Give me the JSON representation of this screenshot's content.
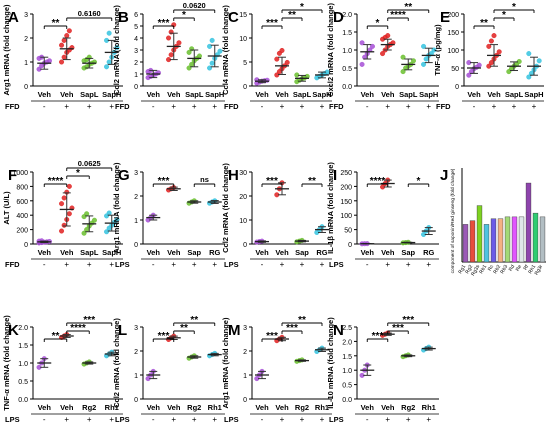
{
  "chart_data": [
    {
      "letter": "A",
      "type": "scatter",
      "ylabel": "Arg1 mRNA (fold change)",
      "yticks": [
        "0",
        "1",
        "2",
        "3"
      ],
      "ylim": [
        0,
        3
      ],
      "groups": [
        "Veh",
        "Veh",
        "SapL",
        "SapH"
      ],
      "treat_label": "FFD",
      "treat": [
        "-",
        "+",
        "+",
        "+"
      ],
      "colors": [
        "#a64fd6",
        "#e02020",
        "#6abf2e",
        "#35c3df"
      ],
      "means": [
        0.95,
        1.55,
        0.95,
        1.4
      ],
      "sds": [
        0.25,
        0.45,
        0.2,
        0.5
      ],
      "points": [
        [
          0.7,
          0.85,
          0.95,
          1.0,
          1.05,
          1.15,
          1.2
        ],
        [
          1.0,
          1.2,
          1.4,
          1.5,
          1.6,
          1.7,
          1.9,
          2.1,
          2.3
        ],
        [
          0.75,
          0.8,
          0.9,
          0.95,
          1.0,
          1.05,
          1.1,
          1.2
        ],
        [
          0.8,
          1.0,
          1.2,
          1.4,
          1.6,
          1.9,
          2.2
        ]
      ],
      "annotations": [
        {
          "from": 0,
          "to": 1,
          "label": "**",
          "level": 0
        },
        {
          "from": 1,
          "to": 3,
          "label": "0.6160",
          "level": 1
        }
      ]
    },
    {
      "letter": "B",
      "type": "scatter",
      "ylabel": "Ccl2 mRNA (fold change)",
      "yticks": [
        "0",
        "1",
        "2",
        "3",
        "4",
        "5",
        "6"
      ],
      "ylim": [
        0,
        6
      ],
      "groups": [
        "Veh",
        "Veh",
        "SapL",
        "SapH"
      ],
      "treat_label": "FFD",
      "treat": [
        "-",
        "+",
        "+",
        "+"
      ],
      "colors": [
        "#a64fd6",
        "#e02020",
        "#6abf2e",
        "#35c3df"
      ],
      "means": [
        1.0,
        3.3,
        2.3,
        2.5
      ],
      "sds": [
        0.3,
        1.1,
        0.7,
        0.9
      ],
      "points": [
        [
          0.7,
          0.8,
          0.9,
          1.0,
          1.1,
          1.2,
          1.3
        ],
        [
          2.2,
          2.6,
          3.0,
          3.3,
          3.6,
          4.0,
          4.5,
          5.1
        ],
        [
          1.5,
          1.8,
          2.1,
          2.3,
          2.5,
          2.8,
          3.1
        ],
        [
          1.5,
          1.9,
          2.3,
          2.6,
          2.9,
          3.3,
          3.8
        ]
      ],
      "annotations": [
        {
          "from": 0,
          "to": 1,
          "label": "***",
          "level": 0
        },
        {
          "from": 1,
          "to": 2,
          "label": "*",
          "level": 1
        },
        {
          "from": 1,
          "to": 3,
          "label": "0.0620",
          "level": 2
        }
      ]
    },
    {
      "letter": "C",
      "type": "scatter",
      "ylabel": "Ccl4 mRNA (fold change)",
      "yticks": [
        "0",
        "5",
        "10",
        "15"
      ],
      "ylim": [
        0,
        15
      ],
      "groups": [
        "Veh",
        "Veh",
        "SapL",
        "SapH"
      ],
      "treat_label": "FFD",
      "treat": [
        "-",
        "+",
        "+",
        "+"
      ],
      "colors": [
        "#a64fd6",
        "#e02020",
        "#6abf2e",
        "#35c3df"
      ],
      "means": [
        1.0,
        4.2,
        1.6,
        2.3
      ],
      "sds": [
        0.3,
        1.8,
        0.6,
        0.6
      ],
      "points": [
        [
          0.6,
          0.8,
          1.0,
          1.1,
          1.2,
          1.3
        ],
        [
          2.3,
          3.0,
          3.6,
          4.2,
          4.9,
          5.6,
          6.8,
          7.4
        ],
        [
          0.9,
          1.2,
          1.5,
          1.7,
          2.0,
          2.3
        ],
        [
          1.7,
          2.0,
          2.3,
          2.6,
          2.9
        ]
      ],
      "annotations": [
        {
          "from": 0,
          "to": 1,
          "label": "***",
          "level": 0
        },
        {
          "from": 1,
          "to": 2,
          "label": "**",
          "level": 1
        },
        {
          "from": 1,
          "to": 3,
          "label": "*",
          "level": 2
        }
      ]
    },
    {
      "letter": "D",
      "type": "scatter",
      "ylabel": "Cxcl2 mRNA (fold change)",
      "yticks": [
        "0.0",
        "0.5",
        "1.0",
        "1.5",
        "2.0"
      ],
      "ylim": [
        0,
        2
      ],
      "groups": [
        "Veh",
        "Veh",
        "SapL",
        "SapH"
      ],
      "treat_label": "FFD",
      "treat": [
        "-",
        "+",
        "+",
        "+"
      ],
      "colors": [
        "#a64fd6",
        "#e02020",
        "#6abf2e",
        "#35c3df"
      ],
      "means": [
        0.95,
        1.15,
        0.6,
        0.85
      ],
      "sds": [
        0.2,
        0.15,
        0.15,
        0.2
      ],
      "points": [
        [
          0.6,
          0.8,
          0.9,
          1.0,
          1.1,
          1.2
        ],
        [
          0.9,
          1.0,
          1.1,
          1.15,
          1.2,
          1.3,
          1.35,
          1.4
        ],
        [
          0.4,
          0.5,
          0.55,
          0.6,
          0.7,
          0.8
        ],
        [
          0.6,
          0.75,
          0.85,
          0.9,
          1.0,
          1.1
        ]
      ],
      "annotations": [
        {
          "from": 0,
          "to": 1,
          "label": "*",
          "level": 0
        },
        {
          "from": 1,
          "to": 2,
          "label": "****",
          "level": 1
        },
        {
          "from": 1,
          "to": 3,
          "label": "**",
          "level": 2
        }
      ]
    },
    {
      "letter": "E",
      "type": "scatter",
      "ylabel": "TNF-α (pg/mg)",
      "yticks": [
        "0",
        "50",
        "100",
        "150",
        "200"
      ],
      "ylim": [
        0,
        200
      ],
      "groups": [
        "Veh",
        "Veh",
        "SapL",
        "SapH"
      ],
      "treat_label": "FFD",
      "treat": [
        "-",
        "+",
        "+",
        "+"
      ],
      "colors": [
        "#a64fd6",
        "#e02020",
        "#6abf2e",
        "#35c3df"
      ],
      "means": [
        50,
        85,
        55,
        55
      ],
      "sds": [
        15,
        30,
        12,
        25
      ],
      "points": [
        [
          30,
          40,
          48,
          52,
          58,
          65
        ],
        [
          55,
          65,
          75,
          85,
          95,
          110,
          125,
          140
        ],
        [
          40,
          48,
          55,
          60,
          68
        ],
        [
          25,
          35,
          45,
          55,
          70,
          90
        ]
      ],
      "annotations": [
        {
          "from": 0,
          "to": 1,
          "label": "**",
          "level": 0
        },
        {
          "from": 1,
          "to": 2,
          "label": "*",
          "level": 1
        },
        {
          "from": 1,
          "to": 3,
          "label": "*",
          "level": 2
        }
      ]
    },
    {
      "letter": "F",
      "type": "scatter",
      "ylabel": "ALT (U/L)",
      "yticks": [
        "0",
        "200",
        "400",
        "600",
        "800",
        "1000"
      ],
      "ylim": [
        0,
        1000
      ],
      "groups": [
        "Veh",
        "Veh",
        "SapL",
        "SapH"
      ],
      "treat_label": "FFD",
      "treat": [
        "-",
        "+",
        "+",
        "+"
      ],
      "colors": [
        "#a64fd6",
        "#e02020",
        "#6abf2e",
        "#35c3df"
      ],
      "means": [
        30,
        480,
        280,
        290
      ],
      "sds": [
        10,
        230,
        110,
        110
      ],
      "points": [
        [
          15,
          20,
          25,
          30,
          35,
          40,
          45
        ],
        [
          180,
          260,
          340,
          420,
          500,
          560,
          640,
          720,
          800
        ],
        [
          150,
          200,
          250,
          290,
          330,
          380,
          420
        ],
        [
          170,
          220,
          260,
          300,
          340,
          390,
          430
        ]
      ],
      "annotations": [
        {
          "from": 0,
          "to": 1,
          "label": "****",
          "level": 0
        },
        {
          "from": 1,
          "to": 2,
          "label": "*",
          "level": 1
        },
        {
          "from": 1,
          "to": 3,
          "label": "0.0625",
          "level": 2
        }
      ]
    },
    {
      "letter": "G",
      "type": "scatter",
      "ylabel": "Arg1 mRNA (fold change)",
      "yticks": [
        "0",
        "1",
        "2",
        "3"
      ],
      "ylim": [
        0,
        3
      ],
      "groups": [
        "Veh",
        "Veh",
        "Sap",
        "RG"
      ],
      "treat_label": "LPS",
      "treat": [
        "-",
        "+",
        "+",
        "+"
      ],
      "colors": [
        "#a64fd6",
        "#e02020",
        "#6abf2e",
        "#35c3df"
      ],
      "means": [
        1.1,
        2.3,
        1.75,
        1.75
      ],
      "sds": [
        0.1,
        0.07,
        0.05,
        0.06
      ],
      "points": [
        [
          1.0,
          1.1,
          1.2
        ],
        [
          2.25,
          2.3,
          2.35
        ],
        [
          1.7,
          1.75,
          1.8
        ],
        [
          1.7,
          1.75,
          1.8
        ]
      ],
      "annotations": [
        {
          "from": 0,
          "to": 1,
          "label": "***",
          "level": 0
        },
        {
          "from": 2,
          "to": 3,
          "label": "ns",
          "level": 0
        }
      ]
    },
    {
      "letter": "H",
      "type": "scatter",
      "ylabel": "Ccl2 mRNA (fold change)",
      "yticks": [
        "0",
        "10",
        "20",
        "30"
      ],
      "ylim": [
        0,
        30
      ],
      "groups": [
        "Veh",
        "Veh",
        "Sap",
        "RG"
      ],
      "treat_label": "LPS",
      "treat": [
        "-",
        "+",
        "+",
        "+"
      ],
      "colors": [
        "#a64fd6",
        "#e02020",
        "#6abf2e",
        "#35c3df"
      ],
      "means": [
        1.0,
        23,
        1.2,
        6.0
      ],
      "sds": [
        0.3,
        2.5,
        0.3,
        1.2
      ],
      "points": [
        [
          0.8,
          1.0,
          1.2
        ],
        [
          20.5,
          23,
          25.5
        ],
        [
          0.9,
          1.2,
          1.5
        ],
        [
          4.8,
          6.0,
          7.2
        ]
      ],
      "annotations": [
        {
          "from": 0,
          "to": 1,
          "label": "***",
          "level": 0
        },
        {
          "from": 2,
          "to": 3,
          "label": "**",
          "level": 0
        }
      ]
    },
    {
      "letter": "I",
      "type": "scatter",
      "ylabel": "IL-1β mRNA (fold change)",
      "yticks": [
        "0",
        "50",
        "100",
        "150",
        "200",
        "250"
      ],
      "ylim": [
        0,
        250
      ],
      "groups": [
        "Veh",
        "Veh",
        "Sap",
        "RG"
      ],
      "treat_label": "LPS",
      "treat": [
        "-",
        "+",
        "+",
        "+"
      ],
      "colors": [
        "#a64fd6",
        "#e02020",
        "#6abf2e",
        "#35c3df"
      ],
      "means": [
        1.0,
        210,
        5,
        45
      ],
      "sds": [
        0.5,
        12,
        1,
        12
      ],
      "points": [
        [
          0.7,
          1.0,
          1.3
        ],
        [
          198,
          210,
          222
        ],
        [
          4,
          5,
          6
        ],
        [
          33,
          45,
          57
        ]
      ],
      "annotations": [
        {
          "from": 0,
          "to": 1,
          "label": "****",
          "level": 0
        },
        {
          "from": 2,
          "to": 3,
          "label": "*",
          "level": 0
        }
      ]
    },
    {
      "letter": "J",
      "type": "bar",
      "ylabel": "component of saponin/Red ginseng (fold change)",
      "categories": [
        "Rg1",
        "Rg2",
        "Rg3s",
        "Rb1",
        "Rc",
        "Rb2",
        "Rb3",
        "Rd",
        "Re",
        "Rf",
        "Rh1",
        "Rg3r"
      ],
      "values": [
        1.0,
        1.1,
        1.5,
        1.0,
        1.15,
        1.15,
        1.2,
        1.2,
        1.2,
        2.1,
        1.3,
        1.2
      ],
      "colors": [
        "#9b59b6",
        "#e74c3c",
        "#7ed321",
        "#4ec3e0",
        "#6c5ce7",
        "#f4b183",
        "#a3d977",
        "#e056fd",
        "#dfe6e9",
        "#8e44ad",
        "#2ecc71",
        "#b2bec3"
      ],
      "ylim": [
        0,
        2.5
      ]
    },
    {
      "letter": "K",
      "type": "scatter",
      "ylabel": "TNF-α mRNA (fold change)",
      "yticks": [
        "0.0",
        "0.5",
        "1.0",
        "1.5",
        "2.0"
      ],
      "ylim": [
        0,
        2
      ],
      "groups": [
        "Veh",
        "Veh",
        "Rg2",
        "Rh1"
      ],
      "treat_label": "LPS",
      "treat": [
        "-",
        "+",
        "+",
        "+"
      ],
      "colors": [
        "#a64fd6",
        "#e02020",
        "#6abf2e",
        "#35c3df"
      ],
      "means": [
        1.0,
        1.75,
        1.0,
        1.25
      ],
      "sds": [
        0.12,
        0.04,
        0.03,
        0.05
      ],
      "points": [
        [
          0.88,
          1.0,
          1.12
        ],
        [
          1.71,
          1.75,
          1.79
        ],
        [
          0.97,
          1.0,
          1.03
        ],
        [
          1.2,
          1.25,
          1.3
        ]
      ],
      "annotations": [
        {
          "from": 0,
          "to": 1,
          "label": "**",
          "level": 0
        },
        {
          "from": 1,
          "to": 2,
          "label": "****",
          "level": 1
        },
        {
          "from": 1,
          "to": 3,
          "label": "***",
          "level": 2
        }
      ]
    },
    {
      "letter": "L",
      "type": "scatter",
      "ylabel": "Ccl2 mRNA (fold change)",
      "yticks": [
        "0",
        "1",
        "2",
        "3"
      ],
      "ylim": [
        0,
        3
      ],
      "groups": [
        "Veh",
        "Veh",
        "Rg2",
        "Rh1"
      ],
      "treat_label": "LPS",
      "treat": [
        "-",
        "+",
        "+",
        "+"
      ],
      "colors": [
        "#a64fd6",
        "#e02020",
        "#6abf2e",
        "#35c3df"
      ],
      "means": [
        1.0,
        2.55,
        1.75,
        1.85
      ],
      "sds": [
        0.15,
        0.07,
        0.05,
        0.05
      ],
      "points": [
        [
          0.85,
          1.0,
          1.15
        ],
        [
          2.48,
          2.55,
          2.62
        ],
        [
          1.7,
          1.75,
          1.8
        ],
        [
          1.8,
          1.85,
          1.9
        ]
      ],
      "annotations": [
        {
          "from": 0,
          "to": 1,
          "label": "***",
          "level": 0
        },
        {
          "from": 1,
          "to": 2,
          "label": "**",
          "level": 1
        },
        {
          "from": 1,
          "to": 3,
          "label": "**",
          "level": 2
        }
      ]
    },
    {
      "letter": "M",
      "type": "scatter",
      "ylabel": "Arg1 mRNA (fold change)",
      "yticks": [
        "0",
        "1",
        "2",
        "3"
      ],
      "ylim": [
        0,
        3
      ],
      "groups": [
        "Veh",
        "Veh",
        "Rg2",
        "Rh1"
      ],
      "treat_label": "LPS",
      "treat": [
        "-",
        "+",
        "+",
        "+"
      ],
      "colors": [
        "#a64fd6",
        "#e02020",
        "#6abf2e",
        "#35c3df"
      ],
      "means": [
        1.0,
        2.5,
        1.6,
        2.05
      ],
      "sds": [
        0.15,
        0.07,
        0.03,
        0.07
      ],
      "points": [
        [
          0.85,
          1.0,
          1.15
        ],
        [
          2.43,
          2.5,
          2.57
        ],
        [
          1.57,
          1.6,
          1.63
        ],
        [
          1.98,
          2.05,
          2.12
        ]
      ],
      "annotations": [
        {
          "from": 0,
          "to": 1,
          "label": "***",
          "level": 0
        },
        {
          "from": 1,
          "to": 2,
          "label": "***",
          "level": 1
        },
        {
          "from": 1,
          "to": 3,
          "label": "**",
          "level": 2
        }
      ]
    },
    {
      "letter": "N",
      "type": "scatter",
      "ylabel": "IL-10 mRNA (fold change)",
      "yticks": [
        "0.0",
        "0.5",
        "1.0",
        "1.5",
        "2.0",
        "2.5"
      ],
      "ylim": [
        0,
        2.5
      ],
      "groups": [
        "Veh",
        "Veh",
        "Rg2",
        "Rh1"
      ],
      "treat_label": "LPS",
      "treat": [
        "-",
        "+",
        "+",
        "+"
      ],
      "colors": [
        "#a64fd6",
        "#e02020",
        "#6abf2e",
        "#35c3df"
      ],
      "means": [
        1.0,
        2.25,
        1.5,
        1.75
      ],
      "sds": [
        0.18,
        0.04,
        0.03,
        0.05
      ],
      "points": [
        [
          0.82,
          1.0,
          1.18
        ],
        [
          2.21,
          2.25,
          2.29
        ],
        [
          1.47,
          1.5,
          1.53
        ],
        [
          1.7,
          1.75,
          1.8
        ]
      ],
      "annotations": [
        {
          "from": 0,
          "to": 1,
          "label": "***",
          "level": 0
        },
        {
          "from": 1,
          "to": 2,
          "label": "***",
          "level": 1
        },
        {
          "from": 1,
          "to": 3,
          "label": "***",
          "level": 2
        }
      ]
    }
  ]
}
